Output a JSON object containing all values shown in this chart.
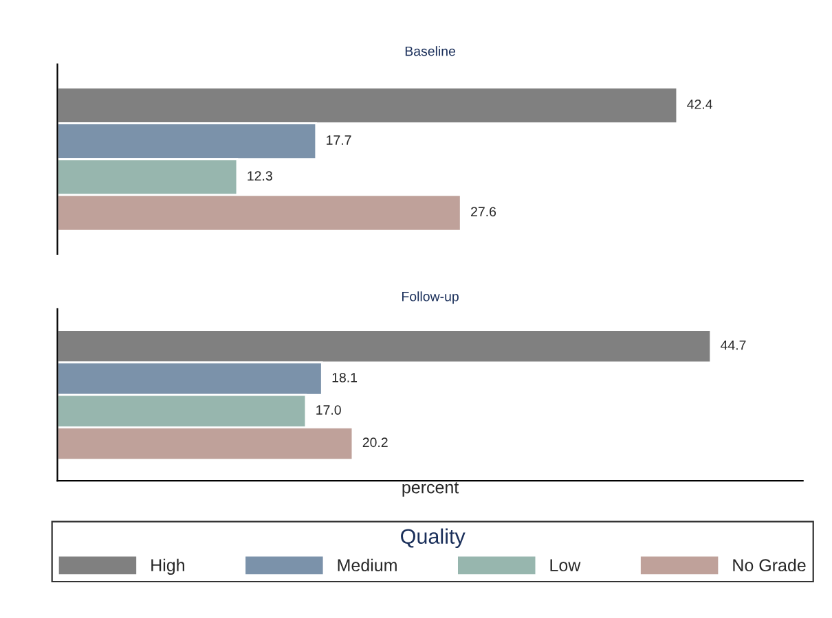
{
  "chart_data": [
    {
      "type": "bar",
      "orientation": "horizontal",
      "title": "Baseline",
      "categories": [
        null
      ],
      "tick_labels": false,
      "data_labels": true,
      "legend": "bottom",
      "legend_title": "Quality",
      "series": [
        {
          "name": "High",
          "color": "#808080",
          "values": [
            42.4
          ]
        },
        {
          "name": "Medium",
          "color": "#7b92aa",
          "values": [
            17.7
          ]
        },
        {
          "name": "Low",
          "color": "#97b6ae",
          "values": [
            12.3
          ]
        },
        {
          "name": "No Grade",
          "color": "#bfa19a",
          "values": [
            27.6
          ]
        }
      ]
    },
    {
      "type": "bar",
      "orientation": "horizontal",
      "title": "Follow-up",
      "xlabel": "percent",
      "categories": [
        null
      ],
      "xlim": [
        0,
        51
      ],
      "tick_labels": false,
      "data_labels": true,
      "series": [
        {
          "color": "#808080",
          "values": [
            44.7
          ]
        },
        {
          "color": "#7b92aa",
          "values": [
            18.1
          ]
        },
        {
          "color": "#97b6ae",
          "values": [
            17.0
          ],
          "value_labels": [
            "17.0"
          ]
        },
        {
          "color": "#bfa19a",
          "values": [
            20.2
          ]
        }
      ]
    }
  ]
}
